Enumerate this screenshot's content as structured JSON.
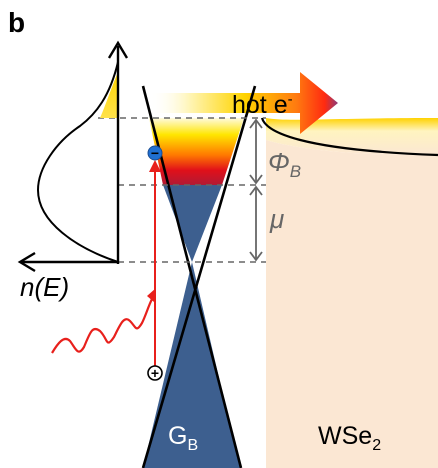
{
  "panel_letter": "b",
  "labels": {
    "hot_electron": "hot e",
    "hot_electron_sup": "-",
    "barrier_symbol": "Φ",
    "barrier_sub": "B",
    "chemical_potential": "μ",
    "density_of_states": "n(E)",
    "graphene": "G",
    "graphene_sub": "B",
    "wse2": "WSe",
    "wse2_sub": "2",
    "electron_sign": "−",
    "hole_sign": "+"
  },
  "colors": {
    "wse2_fill": "#fbe7d3",
    "graphene_fill": "#3d5f8f",
    "excitation_red": "#e8201c",
    "guide_gray": "#666666"
  }
}
